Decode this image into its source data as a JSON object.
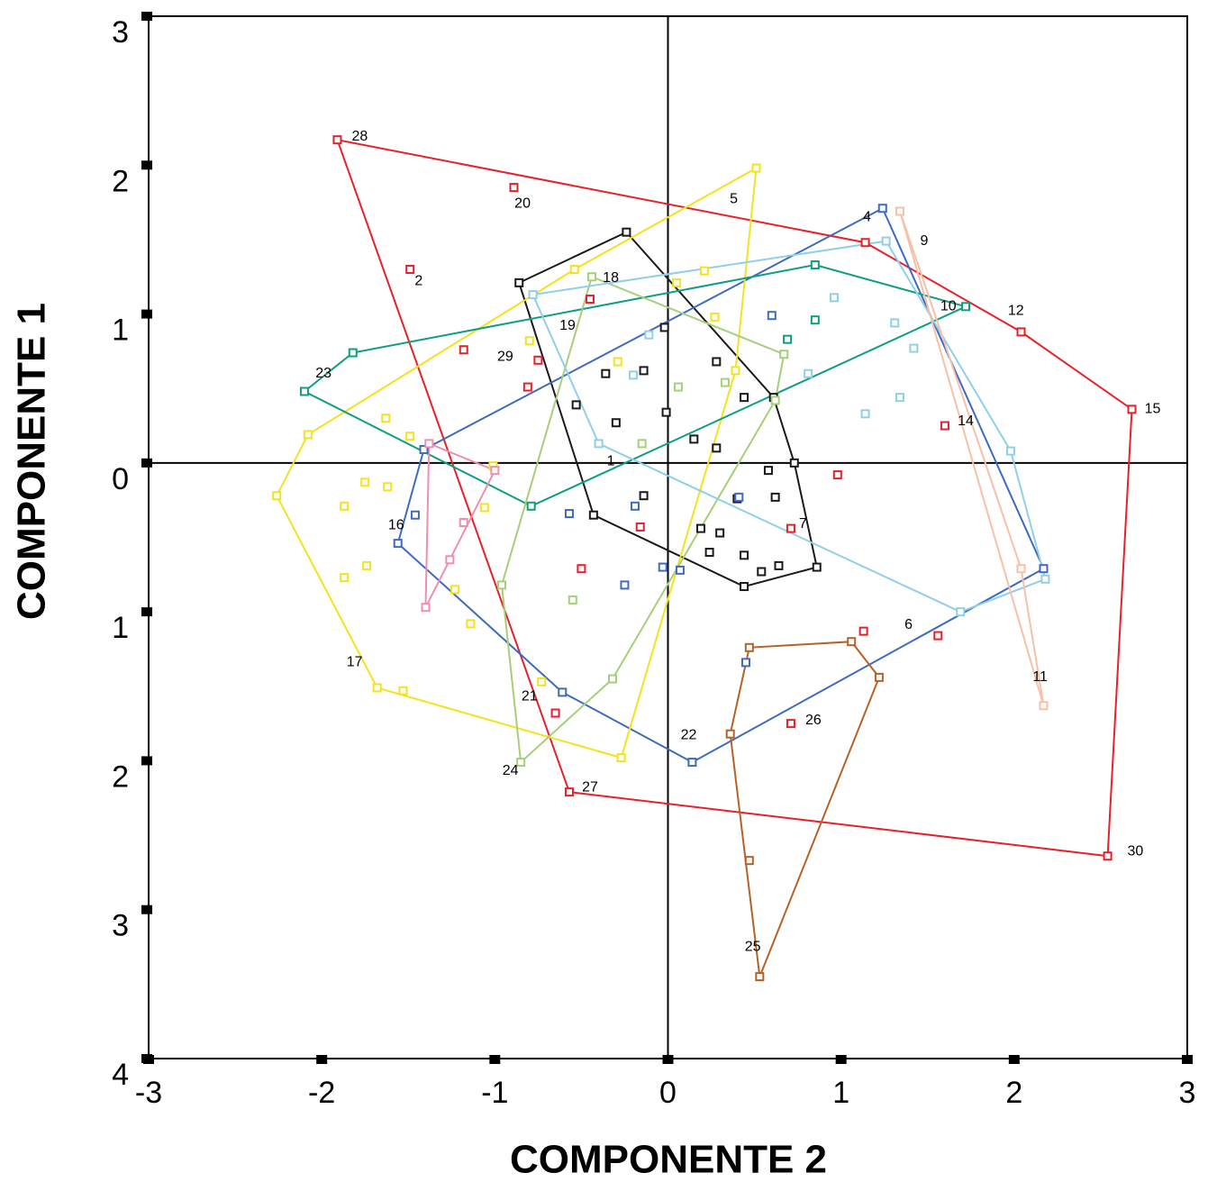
{
  "chart_data": {
    "type": "scatter",
    "x_label": "COMPONENTE 2",
    "y_label": "COMPONENTE 1",
    "xlim": [
      -3,
      3
    ],
    "ylim": [
      -4,
      3
    ],
    "xticks": [
      -3,
      -2,
      -1,
      0,
      1,
      2,
      3
    ],
    "yticks": [
      {
        "value": 3,
        "label": "3"
      },
      {
        "value": 2,
        "label": "2"
      },
      {
        "value": 1,
        "label": "1"
      },
      {
        "value": 0,
        "label": "0"
      },
      {
        "value": -1,
        "label": "1"
      },
      {
        "value": -2,
        "label": "2"
      },
      {
        "value": -3,
        "label": "3"
      },
      {
        "value": -4,
        "label": "4"
      }
    ],
    "hull": true,
    "series": [
      {
        "color": "#e8202a",
        "x": [
          -1.91,
          -0.89,
          -1.49,
          -0.75,
          1.6,
          2.68,
          0.71,
          1.56,
          0.71,
          -0.57,
          2.54,
          -1.18,
          -0.81,
          -0.45,
          1.14,
          2.04,
          0.98,
          -0.16,
          -0.5,
          1.13,
          -0.65
        ],
        "values": [
          2.17,
          1.85,
          1.3,
          0.69,
          0.25,
          0.36,
          -0.44,
          -1.16,
          -1.75,
          -2.21,
          -2.64,
          0.76,
          0.51,
          1.1,
          1.48,
          0.88,
          -0.08,
          -0.43,
          -0.71,
          -1.13,
          -1.68
        ]
      },
      {
        "color": "#1a1a1a",
        "x": [
          -0.24,
          -0.86,
          -0.02,
          -0.14,
          0.28,
          -0.01,
          0.15,
          0.28,
          -0.3,
          -0.53,
          0.44,
          0.61,
          0.73,
          0.62,
          0.4,
          0.19,
          0.3,
          0.24,
          0.44,
          0.54,
          0.44,
          0.64,
          0.86,
          0.58,
          -0.14,
          -0.43,
          -0.36
        ],
        "values": [
          1.55,
          1.21,
          0.91,
          0.62,
          0.68,
          0.34,
          0.16,
          0.1,
          0.27,
          0.39,
          0.44,
          0.44,
          0.0,
          -0.23,
          -0.24,
          -0.44,
          -0.47,
          -0.6,
          -0.62,
          -0.73,
          -0.83,
          -0.69,
          -0.7,
          -0.05,
          -0.22,
          -0.35,
          0.6
        ]
      },
      {
        "color": "#3f6bbf",
        "x": [
          1.24,
          -0.19,
          -0.57,
          -0.03,
          0.07,
          -0.25,
          0.45,
          0.14,
          -0.61,
          -1.41,
          -1.56,
          -1.46,
          0.6,
          0.41,
          2.17
        ],
        "values": [
          1.71,
          -0.29,
          -0.34,
          -0.7,
          -0.72,
          -0.82,
          -1.34,
          -2.01,
          -1.54,
          0.09,
          -0.54,
          -0.35,
          0.99,
          -0.23,
          -0.71
        ]
      },
      {
        "color": "#f4e21c",
        "x": [
          -1.49,
          -1.75,
          -1.87,
          -1.62,
          -1.63,
          -2.08,
          -2.26,
          -1.74,
          -1.87,
          -1.68,
          -1.53,
          -1.14,
          -1.23,
          -1.06,
          -1.01,
          -0.8,
          -0.54,
          -0.29,
          0.05,
          0.27,
          0.39,
          0.21,
          0.51,
          -0.73,
          -0.27
        ],
        "values": [
          0.18,
          -0.13,
          -0.29,
          -0.16,
          0.3,
          0.19,
          -0.22,
          -0.69,
          -0.77,
          -1.51,
          -1.53,
          -1.08,
          -0.85,
          -0.3,
          -0.02,
          0.82,
          1.3,
          0.68,
          1.21,
          0.98,
          0.62,
          1.29,
          1.98,
          -1.47,
          -1.98
        ]
      },
      {
        "color": "#0f9e82",
        "x": [
          -1.82,
          -2.1,
          -0.79,
          0.85,
          1.72,
          0.85,
          0.69
        ],
        "values": [
          0.74,
          0.48,
          -0.29,
          1.33,
          1.05,
          0.96,
          0.83
        ]
      },
      {
        "color": "#a6cf7a",
        "x": [
          -0.44,
          0.06,
          0.33,
          0.67,
          0.62,
          -0.55,
          -0.32,
          -0.96,
          -0.85,
          -0.15
        ],
        "values": [
          1.25,
          0.51,
          0.54,
          0.73,
          0.42,
          -0.92,
          -1.45,
          -0.82,
          -2.01,
          0.13
        ]
      },
      {
        "color": "#ee8fb0",
        "x": [
          -1.38,
          -1.4,
          -1.26,
          -1.18,
          -1.0
        ],
        "values": [
          0.13,
          -0.97,
          -0.65,
          -0.4,
          -0.05
        ]
      },
      {
        "color": "#b5622a",
        "x": [
          0.36,
          0.47,
          0.47,
          0.53,
          1.06,
          1.22
        ],
        "values": [
          -1.82,
          -1.24,
          -2.67,
          -3.45,
          -1.2,
          -1.44
        ]
      },
      {
        "color": "#8fd0e8",
        "x": [
          -0.2,
          -0.78,
          -0.4,
          -0.11,
          1.34,
          1.98,
          1.14,
          0.96,
          1.31,
          1.42,
          1.69,
          2.18,
          1.26,
          0.81
        ],
        "values": [
          0.59,
          1.13,
          0.13,
          0.86,
          0.44,
          0.08,
          0.33,
          1.11,
          0.94,
          0.77,
          -1.0,
          -0.78,
          1.49,
          0.6
        ]
      },
      {
        "color": "#f7c0a8",
        "x": [
          2.17,
          2.04,
          1.34
        ],
        "values": [
          -1.63,
          -0.71,
          1.69
        ]
      }
    ],
    "annotations": [
      {
        "text": "28",
        "x": -1.78,
        "y": 2.19
      },
      {
        "text": "20",
        "x": -0.84,
        "y": 1.74
      },
      {
        "text": "2",
        "x": -1.44,
        "y": 1.22
      },
      {
        "text": "18",
        "x": -0.33,
        "y": 1.24
      },
      {
        "text": "19",
        "x": -0.58,
        "y": 0.92
      },
      {
        "text": "29",
        "x": -0.94,
        "y": 0.71
      },
      {
        "text": "23",
        "x": -1.99,
        "y": 0.6
      },
      {
        "text": "1",
        "x": -0.33,
        "y": 0.01
      },
      {
        "text": "16",
        "x": -1.57,
        "y": -0.42
      },
      {
        "text": "17",
        "x": -1.81,
        "y": -1.34
      },
      {
        "text": "21",
        "x": -0.8,
        "y": -1.57
      },
      {
        "text": "24",
        "x": -0.91,
        "y": -2.07
      },
      {
        "text": "27",
        "x": -0.45,
        "y": -2.18
      },
      {
        "text": "22",
        "x": 0.12,
        "y": -1.83
      },
      {
        "text": "25",
        "x": 0.49,
        "y": -3.25
      },
      {
        "text": "26",
        "x": 0.84,
        "y": -1.73
      },
      {
        "text": "7",
        "x": 0.78,
        "y": -0.41
      },
      {
        "text": "6",
        "x": 1.39,
        "y": -1.09
      },
      {
        "text": "11",
        "x": 2.15,
        "y": -1.44
      },
      {
        "text": "14",
        "x": 1.72,
        "y": 0.28
      },
      {
        "text": "15",
        "x": 2.8,
        "y": 0.36
      },
      {
        "text": "30",
        "x": 2.7,
        "y": -2.61
      },
      {
        "text": "10",
        "x": 1.62,
        "y": 1.05
      },
      {
        "text": "9",
        "x": 1.48,
        "y": 1.49
      },
      {
        "text": "4",
        "x": 1.15,
        "y": 1.65
      },
      {
        "text": "5",
        "x": 0.38,
        "y": 1.77
      },
      {
        "text": "12",
        "x": 2.01,
        "y": 1.02
      }
    ]
  }
}
